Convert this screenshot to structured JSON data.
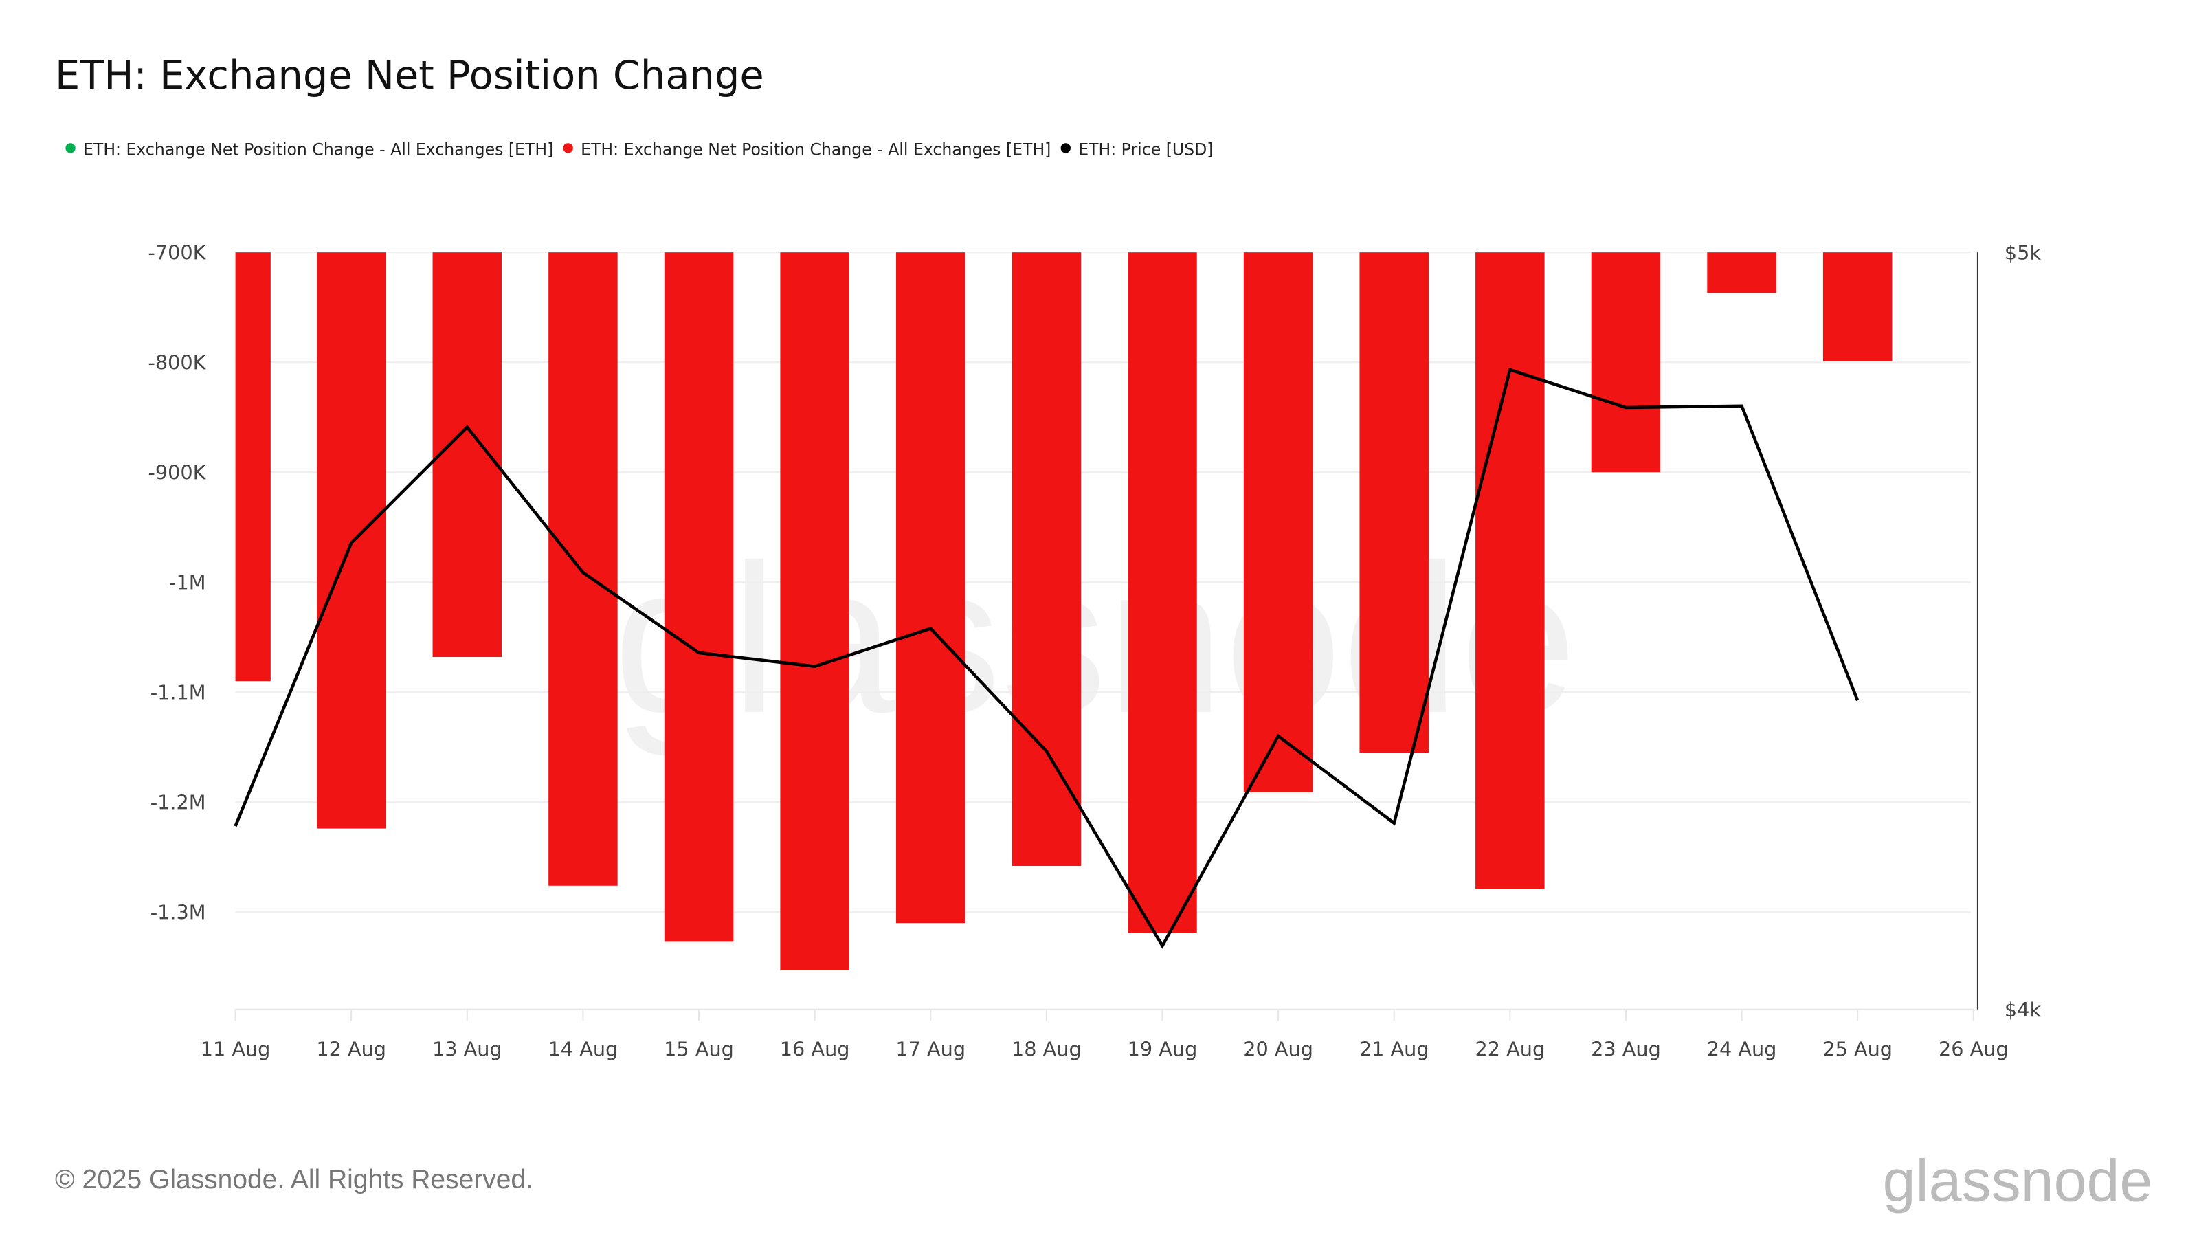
{
  "title": "ETH: Exchange Net Position Change",
  "legend": [
    {
      "label": "ETH: Exchange Net Position Change - All Exchanges [ETH]",
      "color": "#00b050"
    },
    {
      "label": "ETH: Exchange Net Position Change - All Exchanges [ETH]",
      "color": "#f01414"
    },
    {
      "label": "ETH: Price [USD]",
      "color": "#000000"
    }
  ],
  "footer": "© 2025 Glassnode. All Rights Reserved.",
  "watermark": "glassnode",
  "logo": "glassnode",
  "chart_data": {
    "type": "bar",
    "title": "ETH: Exchange Net Position Change",
    "categories": [
      "11 Aug",
      "12 Aug",
      "13 Aug",
      "14 Aug",
      "15 Aug",
      "16 Aug",
      "17 Aug",
      "18 Aug",
      "19 Aug",
      "20 Aug",
      "21 Aug",
      "22 Aug",
      "23 Aug",
      "24 Aug",
      "25 Aug"
    ],
    "x_tick_labels": [
      "11 Aug",
      "12 Aug",
      "13 Aug",
      "14 Aug",
      "15 Aug",
      "16 Aug",
      "17 Aug",
      "18 Aug",
      "19 Aug",
      "20 Aug",
      "21 Aug",
      "22 Aug",
      "23 Aug",
      "24 Aug",
      "25 Aug",
      "26 Aug"
    ],
    "y_left": {
      "ticks": [
        "-700K",
        "-800K",
        "-900K",
        "-1M",
        "-1.1M",
        "-1.2M",
        "-1.3M"
      ],
      "tick_values": [
        -700000,
        -800000,
        -900000,
        -1000000,
        -1100000,
        -1200000,
        -1300000
      ],
      "ylim": [
        -1390000,
        -700000
      ]
    },
    "y_right": {
      "ticks": [
        "$5k",
        "$4k"
      ],
      "tick_values": [
        5000,
        4000
      ],
      "ylim": [
        4000,
        5000
      ]
    },
    "grid": true,
    "legend_position": "top-left",
    "series": [
      {
        "name": "ETH: Exchange Net Position Change - All Exchanges [ETH]",
        "type": "bar",
        "axis": "left",
        "color": "#f01414",
        "values": [
          -1090000,
          -1224000,
          -1068000,
          -1276000,
          -1327000,
          -1353000,
          -1310000,
          -1258000,
          -1319000,
          -1191000,
          -1155000,
          -1279000,
          -900000,
          -737000,
          -799000
        ]
      },
      {
        "name": "ETH: Price [USD]",
        "type": "line",
        "axis": "right",
        "color": "#000000",
        "values": [
          4242,
          4616,
          4769,
          4577,
          4471,
          4453,
          4503,
          4341,
          4084,
          4361,
          4246,
          4845,
          4795,
          4797,
          4408
        ]
      }
    ]
  }
}
